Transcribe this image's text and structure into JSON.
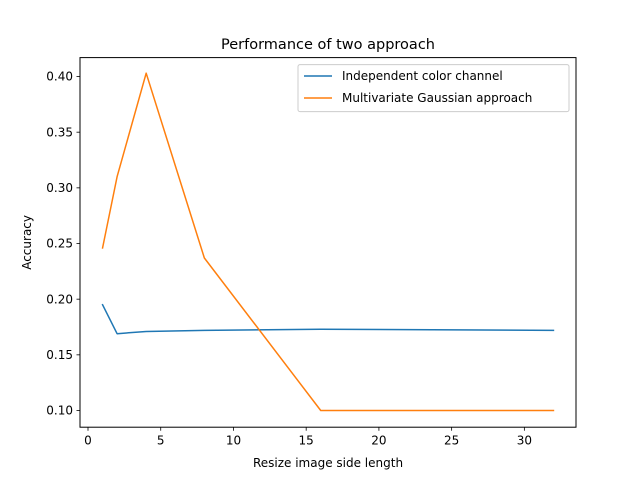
{
  "chart_data": {
    "type": "line",
    "title": "Performance of two approach",
    "xlabel": "Resize image side length",
    "ylabel": "Accuracy",
    "xlim": [
      -0.55,
      33.55
    ],
    "ylim": [
      0.085,
      0.417
    ],
    "xticks": [
      0,
      5,
      10,
      15,
      20,
      25,
      30
    ],
    "xtick_labels": [
      "0",
      "5",
      "10",
      "15",
      "20",
      "25",
      "30"
    ],
    "yticks": [
      0.1,
      0.15,
      0.2,
      0.25,
      0.3,
      0.35,
      0.4
    ],
    "ytick_labels": [
      "0.10",
      "0.15",
      "0.20",
      "0.25",
      "0.30",
      "0.35",
      "0.40"
    ],
    "grid": false,
    "legend_position": "upper right",
    "x": [
      1,
      2,
      4,
      8,
      16,
      32
    ],
    "series": [
      {
        "name": "Independent color channel",
        "color": "#1f77b4",
        "values": [
          0.195,
          0.169,
          0.171,
          0.172,
          0.173,
          0.172
        ]
      },
      {
        "name": "Multivariate Gaussian approach",
        "color": "#ff7f0e",
        "values": [
          0.246,
          0.31,
          0.403,
          0.237,
          0.1,
          0.1
        ]
      }
    ]
  }
}
